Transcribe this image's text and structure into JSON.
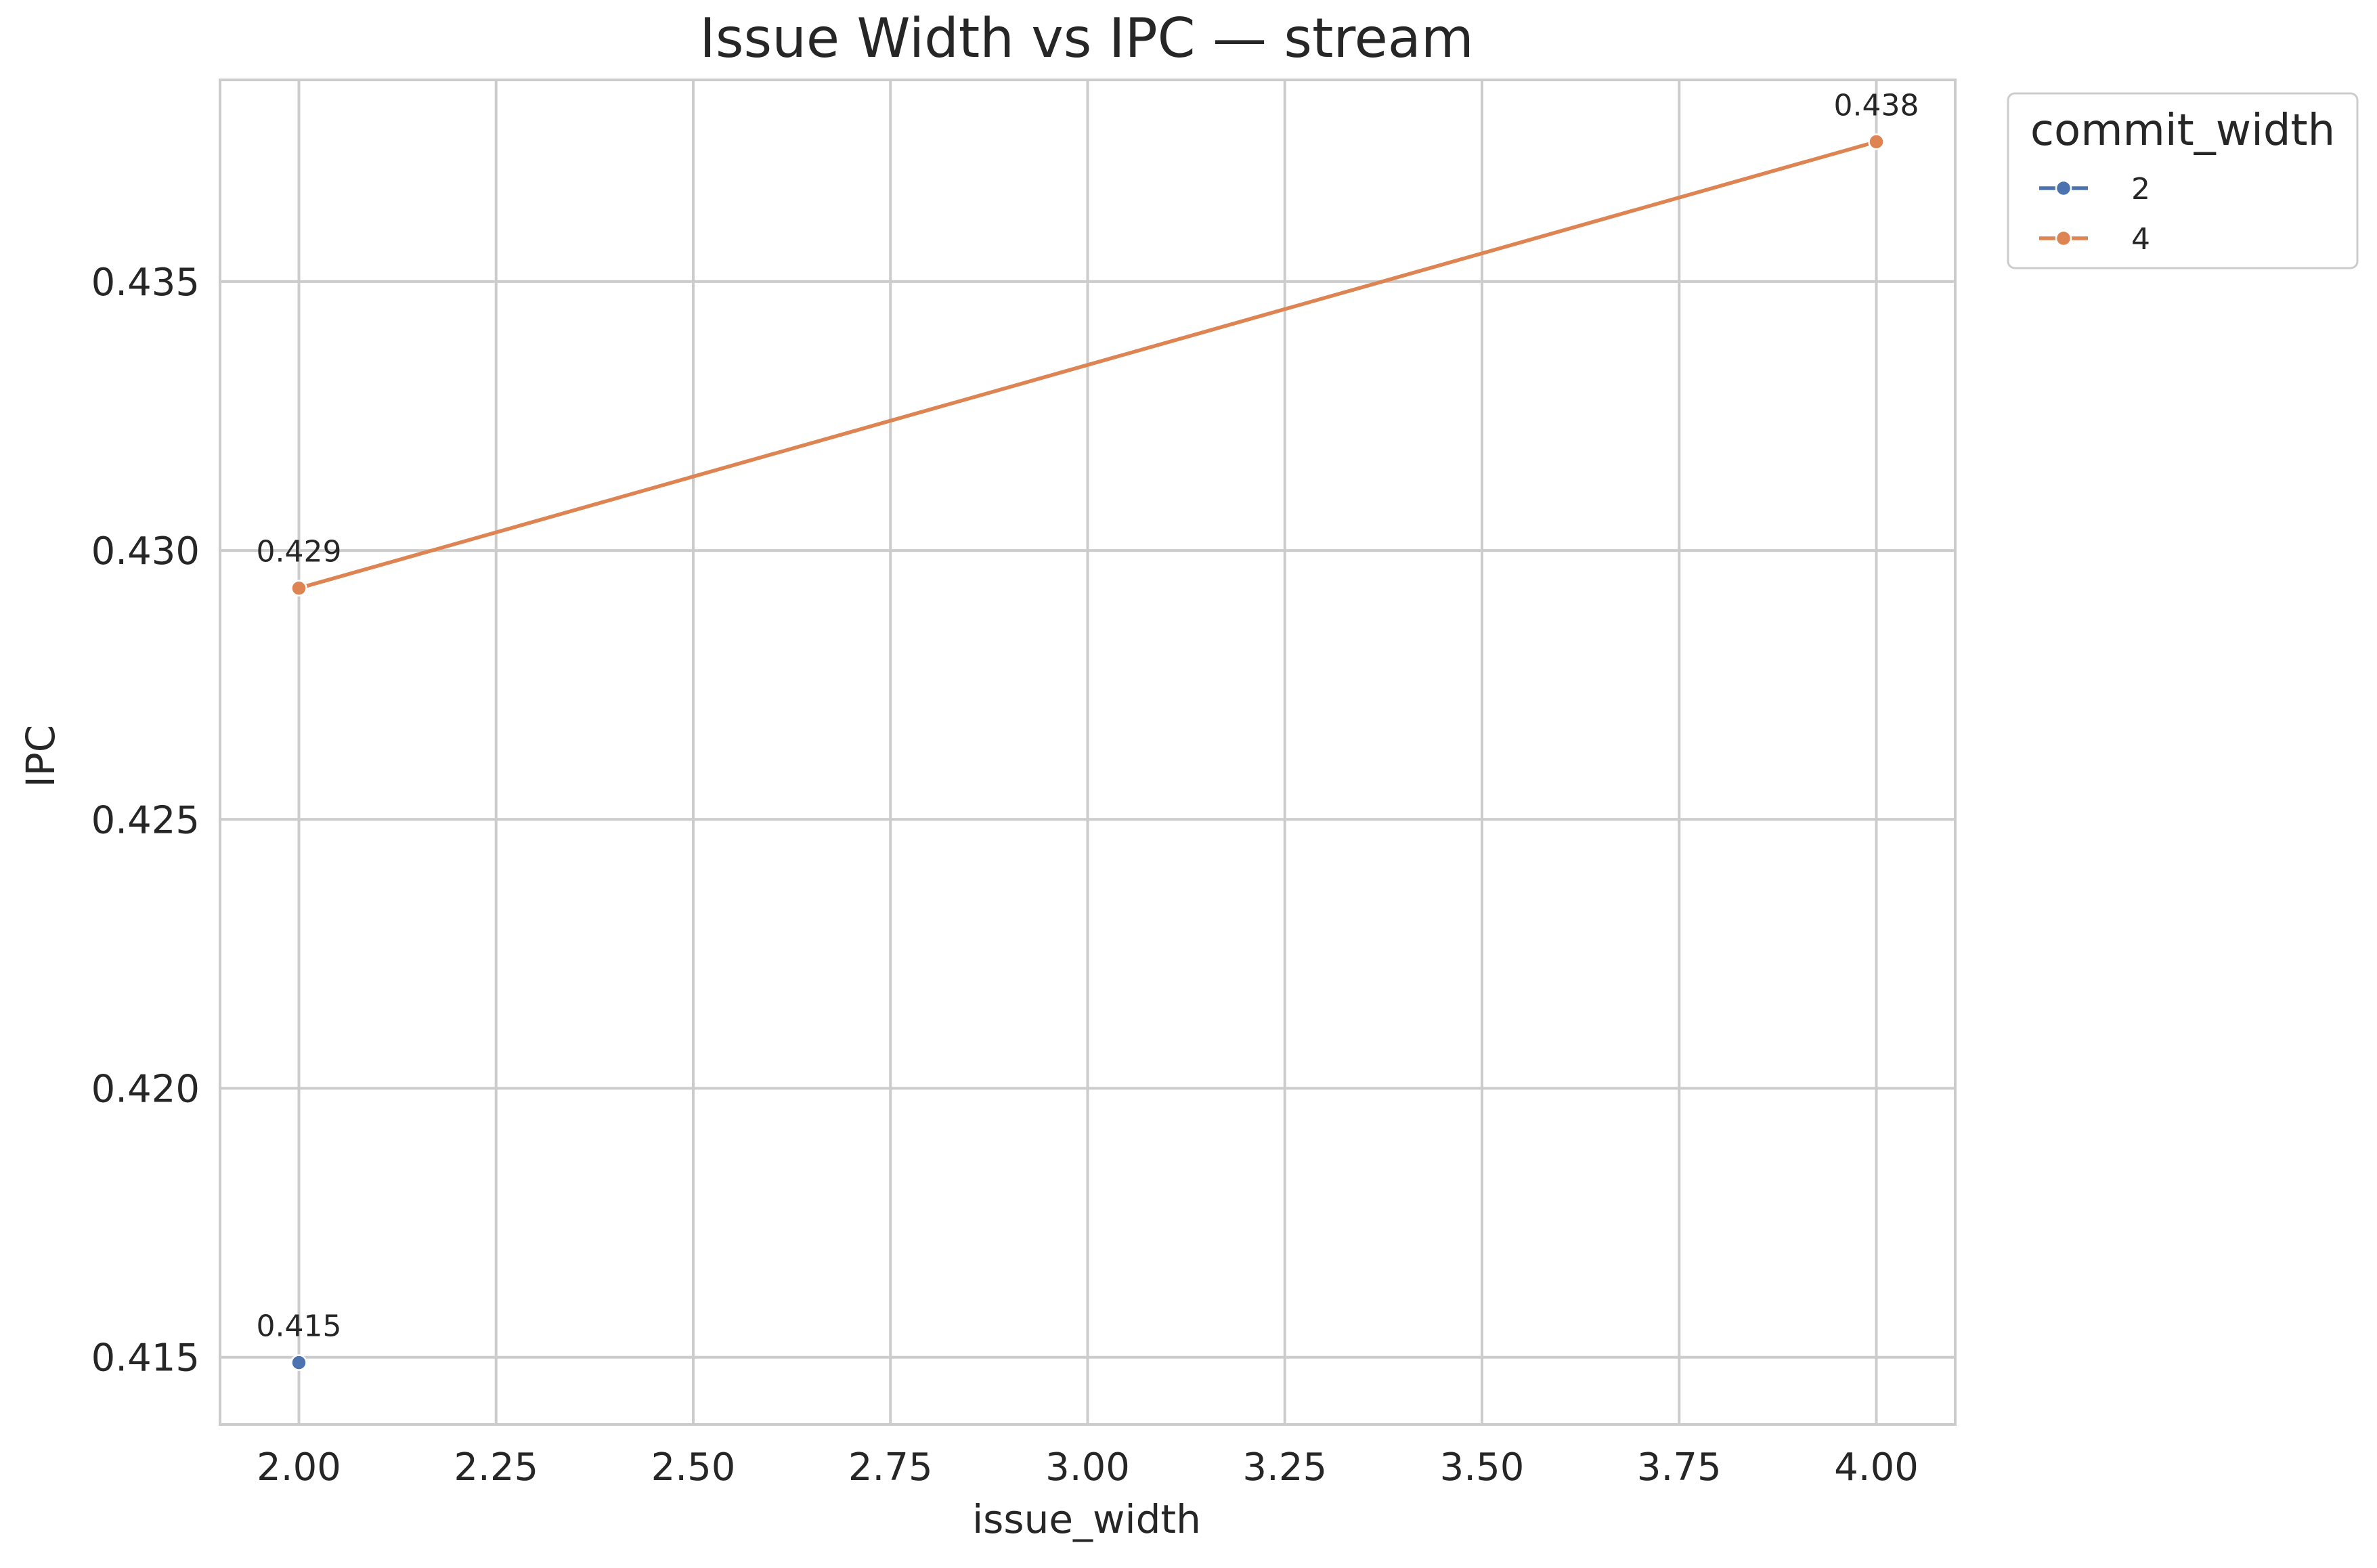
{
  "chart_data": {
    "type": "line",
    "title": "Issue Width vs IPC — stream",
    "xlabel": "issue_width",
    "ylabel": "IPC",
    "xlim": [
      1.9,
      4.1
    ],
    "ylim": [
      0.41375,
      0.43875
    ],
    "xticks": [
      2.0,
      2.25,
      2.5,
      2.75,
      3.0,
      3.25,
      3.5,
      3.75,
      4.0
    ],
    "xtick_labels": [
      "2.00",
      "2.25",
      "2.50",
      "2.75",
      "3.00",
      "3.25",
      "3.50",
      "3.75",
      "4.00"
    ],
    "yticks": [
      0.415,
      0.42,
      0.425,
      0.43,
      0.435
    ],
    "ytick_labels": [
      "0.415",
      "0.420",
      "0.425",
      "0.430",
      "0.435"
    ],
    "grid": true,
    "legend": {
      "title": "commit_width",
      "placement": "outside-top-right"
    },
    "series": [
      {
        "name": "2",
        "color": "#4c72b0",
        "x": [
          2.0
        ],
        "y": [
          0.4149
        ],
        "labels": [
          "0.415"
        ]
      },
      {
        "name": "4",
        "color": "#dd8452",
        "x": [
          2.0,
          4.0
        ],
        "y": [
          0.4293,
          0.4376
        ],
        "labels": [
          "0.429",
          "0.438"
        ]
      }
    ]
  }
}
